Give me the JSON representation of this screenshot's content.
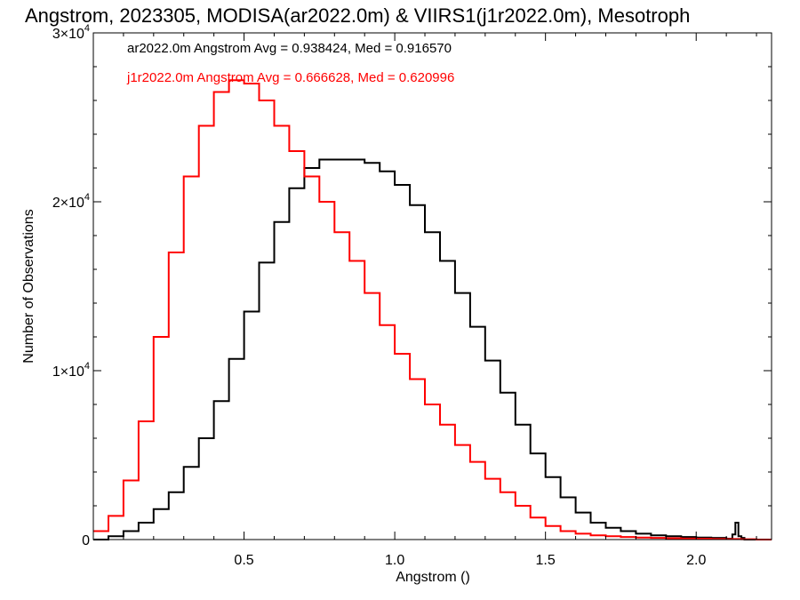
{
  "chart_data": {
    "type": "line",
    "title": "Angstrom, 2023305, MODISA(ar2022.0m) & VIIRS1(j1r2022.0m), Mesotroph",
    "xlabel": "Angstrom ()",
    "ylabel": "Number of Observations",
    "xlim": [
      0.0,
      2.25
    ],
    "ylim": [
      0,
      30000
    ],
    "x_ticks": [
      {
        "value": 0.5,
        "label": "0.5"
      },
      {
        "value": 1.0,
        "label": "1.0"
      },
      {
        "value": 1.5,
        "label": "1.5"
      },
      {
        "value": 2.0,
        "label": "2.0"
      }
    ],
    "y_ticks": [
      {
        "value": 0,
        "mantissa": "0",
        "exp": ""
      },
      {
        "value": 10000,
        "mantissa": "1×10",
        "exp": "4"
      },
      {
        "value": 20000,
        "mantissa": "2×10",
        "exp": "4"
      },
      {
        "value": 30000,
        "mantissa": "3×10",
        "exp": "4"
      }
    ],
    "grid": false,
    "annotations": [
      {
        "text": "ar2022.0m Angstrom Avg = 0.938424, Med = 0.916570",
        "color": "#000000"
      },
      {
        "text": "j1r2022.0m Angstrom Avg = 0.666628, Med = 0.620996",
        "color": "#ff0000"
      }
    ],
    "series": [
      {
        "color": "#000000",
        "x": [
          0.0,
          0.05,
          0.1,
          0.15,
          0.2,
          0.25,
          0.3,
          0.35,
          0.4,
          0.45,
          0.5,
          0.55,
          0.6,
          0.65,
          0.7,
          0.75,
          0.8,
          0.85,
          0.9,
          0.95,
          1.0,
          1.05,
          1.1,
          1.15,
          1.2,
          1.25,
          1.3,
          1.35,
          1.4,
          1.45,
          1.5,
          1.55,
          1.6,
          1.65,
          1.7,
          1.75,
          1.8,
          1.85,
          1.9,
          1.95,
          2.0,
          2.05,
          2.1,
          2.12,
          2.13,
          2.14,
          2.15,
          2.16,
          2.2,
          2.25
        ],
        "y": [
          0,
          200,
          500,
          1000,
          1800,
          2800,
          4300,
          6000,
          8200,
          10700,
          13500,
          16400,
          18800,
          20800,
          22000,
          22500,
          22500,
          22500,
          22300,
          21800,
          21000,
          19800,
          18200,
          16500,
          14600,
          12600,
          10600,
          8700,
          6800,
          5100,
          3700,
          2500,
          1600,
          1000,
          700,
          500,
          350,
          250,
          200,
          150,
          120,
          100,
          50,
          300,
          1000,
          200,
          100,
          0,
          0,
          0
        ]
      },
      {
        "color": "#ff0000",
        "x": [
          0.0,
          0.05,
          0.1,
          0.15,
          0.2,
          0.25,
          0.3,
          0.35,
          0.4,
          0.45,
          0.5,
          0.55,
          0.6,
          0.65,
          0.7,
          0.75,
          0.8,
          0.85,
          0.9,
          0.95,
          1.0,
          1.05,
          1.1,
          1.15,
          1.2,
          1.25,
          1.3,
          1.35,
          1.4,
          1.45,
          1.5,
          1.55,
          1.6,
          1.65,
          1.7,
          1.75,
          1.8,
          1.85,
          1.9,
          1.95,
          2.0,
          2.05,
          2.1,
          2.15,
          2.2,
          2.25
        ],
        "y": [
          500,
          1400,
          3500,
          7000,
          12000,
          17000,
          21500,
          24500,
          26500,
          27200,
          27000,
          26000,
          24500,
          23000,
          21500,
          20000,
          18200,
          16500,
          14600,
          12700,
          11000,
          9500,
          8000,
          6800,
          5600,
          4600,
          3600,
          2800,
          2000,
          1300,
          800,
          500,
          350,
          250,
          200,
          150,
          120,
          100,
          80,
          60,
          50,
          40,
          30,
          20,
          0,
          0
        ]
      }
    ]
  }
}
